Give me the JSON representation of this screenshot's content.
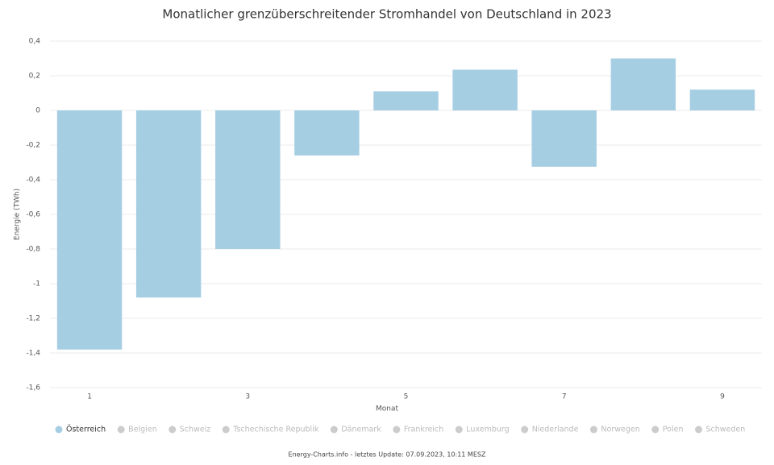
{
  "chart_data": {
    "type": "bar",
    "title": "Monatlicher grenzüberschreitender Stromhandel von Deutschland in 2023",
    "xlabel": "Monat",
    "ylabel": "Energie (TWh)",
    "categories": [
      "1",
      null,
      "3",
      null,
      "5",
      null,
      "7",
      null,
      "9"
    ],
    "series": [
      {
        "name": "Österreich",
        "color": "#a6cee3",
        "values": [
          -1.38,
          -1.08,
          -0.8,
          -0.26,
          0.11,
          0.235,
          -0.325,
          0.3,
          0.12
        ]
      }
    ],
    "legend_inactive": [
      "Belgien",
      "Schweiz",
      "Tschechische Republik",
      "Dänemark",
      "Frankreich",
      "Luxemburg",
      "Niederlande",
      "Norwegen",
      "Polen",
      "Schweden"
    ],
    "inactive_color": "#cccccc",
    "ylim": [
      -1.6,
      0.4
    ],
    "yticks": [
      {
        "value": 0.4,
        "label": "0,4"
      },
      {
        "value": 0.2,
        "label": "0,2"
      },
      0,
      {
        "value": -0.2,
        "label": "-0,2"
      },
      {
        "value": -0.4,
        "label": "-0,4"
      },
      {
        "value": -0.6,
        "label": "-0,6"
      },
      {
        "value": -0.8,
        "label": "-0,8"
      },
      -1,
      {
        "value": -1.2,
        "label": "-1,2"
      },
      {
        "value": -1.4,
        "label": "-1,4"
      },
      {
        "value": -1.6,
        "label": "-1,6"
      }
    ],
    "grid": true,
    "legend": "bottom",
    "footer": "Energy-Charts.info - letztes Update: 07.09.2023, 10:11 MESZ"
  }
}
